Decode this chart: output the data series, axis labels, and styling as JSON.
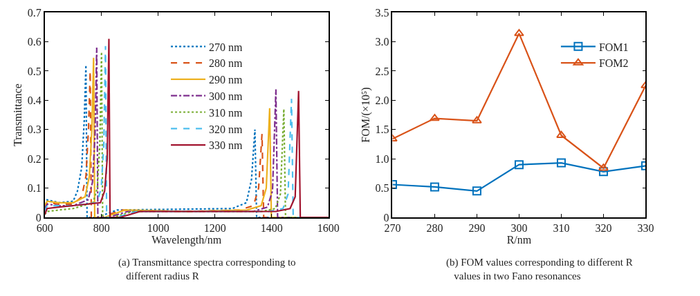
{
  "chart_data": [
    {
      "type": "line",
      "xlabel": "Wavelength/nm",
      "ylabel": "Transmittance",
      "annotations": [
        "(a) Transmittance spectra corresponding to different radius R"
      ],
      "xlim": [
        600,
        1600
      ],
      "ylim": [
        0,
        0.7
      ],
      "xticks": [
        600,
        800,
        1000,
        1200,
        1400,
        1600
      ],
      "yticks": [
        0,
        0.1,
        0.2,
        0.3,
        0.4,
        0.5,
        0.6,
        0.7
      ],
      "legend": "top",
      "marker": "none",
      "series": [
        {
          "name": "270 nm",
          "color": "#0072bd",
          "line_style": "dotted",
          "x": [
            600,
            608,
            650,
            700,
            715,
            730,
            739,
            745,
            749,
            785,
            855,
            1261,
            1311,
            1329,
            1341,
            1347,
            1371,
            1600
          ],
          "values": [
            0.03,
            0.06,
            0.05,
            0.055,
            0.09,
            0.17,
            0.33,
            0.52,
            0,
            0,
            0.025,
            0.03,
            0.05,
            0.13,
            0.3,
            0,
            0,
            0
          ]
        },
        {
          "name": "280 nm",
          "color": "#d95319",
          "line_style": "dashed",
          "x": [
            600,
            608,
            650,
            700,
            730,
            745,
            754,
            760,
            764,
            800,
            870,
            1100,
            1286,
            1336,
            1354,
            1366,
            1372,
            1396,
            1600
          ],
          "values": [
            0.03,
            0.05,
            0.045,
            0.045,
            0.07,
            0.14,
            0.3,
            0.5,
            0,
            0,
            0.025,
            0.02,
            0.025,
            0.04,
            0.1,
            0.285,
            0,
            0,
            0
          ]
        },
        {
          "name": "290 nm",
          "color": "#edb120",
          "line_style": "solid",
          "x": [
            600,
            608,
            650,
            700,
            742,
            757,
            766,
            772,
            776,
            812,
            882,
            1100,
            1313,
            1363,
            1381,
            1393,
            1399,
            1423,
            1600
          ],
          "values": [
            0.04,
            0.055,
            0.05,
            0.05,
            0.07,
            0.14,
            0.3,
            0.545,
            0,
            0,
            0.025,
            0.02,
            0.025,
            0.04,
            0.1,
            0.373,
            0,
            0,
            0
          ]
        },
        {
          "name": "300 nm",
          "color": "#7e2f8e",
          "line_style": "dashdot",
          "x": [
            600,
            608,
            650,
            700,
            753,
            768,
            777,
            783,
            787,
            823,
            893,
            1100,
            1335,
            1385,
            1403,
            1415,
            1421,
            1445,
            1600
          ],
          "values": [
            0.03,
            0.045,
            0.04,
            0.04,
            0.06,
            0.12,
            0.28,
            0.58,
            0,
            0,
            0.02,
            0.02,
            0.02,
            0.035,
            0.09,
            0.437,
            0,
            0,
            0
          ]
        },
        {
          "name": "310 nm",
          "color": "#77ac30",
          "line_style": "dotted",
          "x": [
            600,
            608,
            650,
            700,
            770,
            785,
            794,
            800,
            804,
            840,
            910,
            1100,
            1363,
            1413,
            1431,
            1443,
            1449,
            1473,
            1600
          ],
          "values": [
            0.01,
            0.02,
            0.025,
            0.03,
            0.05,
            0.1,
            0.25,
            0.565,
            0,
            0,
            0.02,
            0.02,
            0.02,
            0.03,
            0.08,
            0.37,
            0,
            0,
            0
          ]
        },
        {
          "name": "320 nm",
          "color": "#4dbeee",
          "line_style": "dashed",
          "x": [
            600,
            608,
            650,
            700,
            784,
            799,
            808,
            814,
            818,
            854,
            924,
            1390,
            1440,
            1458,
            1470,
            1476,
            1500,
            1600
          ],
          "values": [
            0.02,
            0.04,
            0.04,
            0.04,
            0.05,
            0.1,
            0.25,
            0.585,
            0,
            0,
            0.02,
            0.02,
            0.03,
            0.08,
            0.405,
            0,
            0,
            0
          ]
        },
        {
          "name": "330 nm",
          "color": "#a2142f",
          "line_style": "solid",
          "x": [
            600,
            608,
            650,
            700,
            796,
            811,
            820,
            826,
            830,
            866,
            936,
            1100,
            1415,
            1465,
            1483,
            1495,
            1501,
            1525,
            1600
          ],
          "values": [
            0.01,
            0.03,
            0.035,
            0.04,
            0.05,
            0.09,
            0.2,
            0.61,
            0,
            0,
            0.02,
            0.02,
            0.02,
            0.03,
            0.07,
            0.432,
            0,
            0,
            0
          ]
        }
      ]
    },
    {
      "type": "line",
      "xlabel": "R/nm",
      "ylabel": "FOM/(×10⁵)",
      "annotations": [
        "(b) FOM values corresponding to different R values in two Fano resonances"
      ],
      "x": [
        270,
        280,
        290,
        300,
        310,
        320,
        330
      ],
      "xlim": [
        270,
        330
      ],
      "ylim": [
        0,
        3.5
      ],
      "xticks": [
        270,
        280,
        290,
        300,
        310,
        320,
        330
      ],
      "yticks": [
        0,
        0.5,
        {
          "value": 1,
          "label": "1.0"
        },
        1.5,
        {
          "value": 2,
          "label": "2.0"
        },
        2.5,
        {
          "value": 3,
          "label": "3.0"
        },
        3.5
      ],
      "legend": "top right",
      "series": [
        {
          "name": "FOM1",
          "color": "#0072bd",
          "marker": "square",
          "values": [
            0.56,
            0.52,
            0.45,
            0.9,
            0.93,
            0.78,
            0.88
          ]
        },
        {
          "name": "FOM2",
          "color": "#d95319",
          "marker": "triangle",
          "values": [
            1.34,
            1.69,
            1.65,
            3.14,
            1.4,
            0.84,
            2.25
          ]
        }
      ]
    }
  ]
}
